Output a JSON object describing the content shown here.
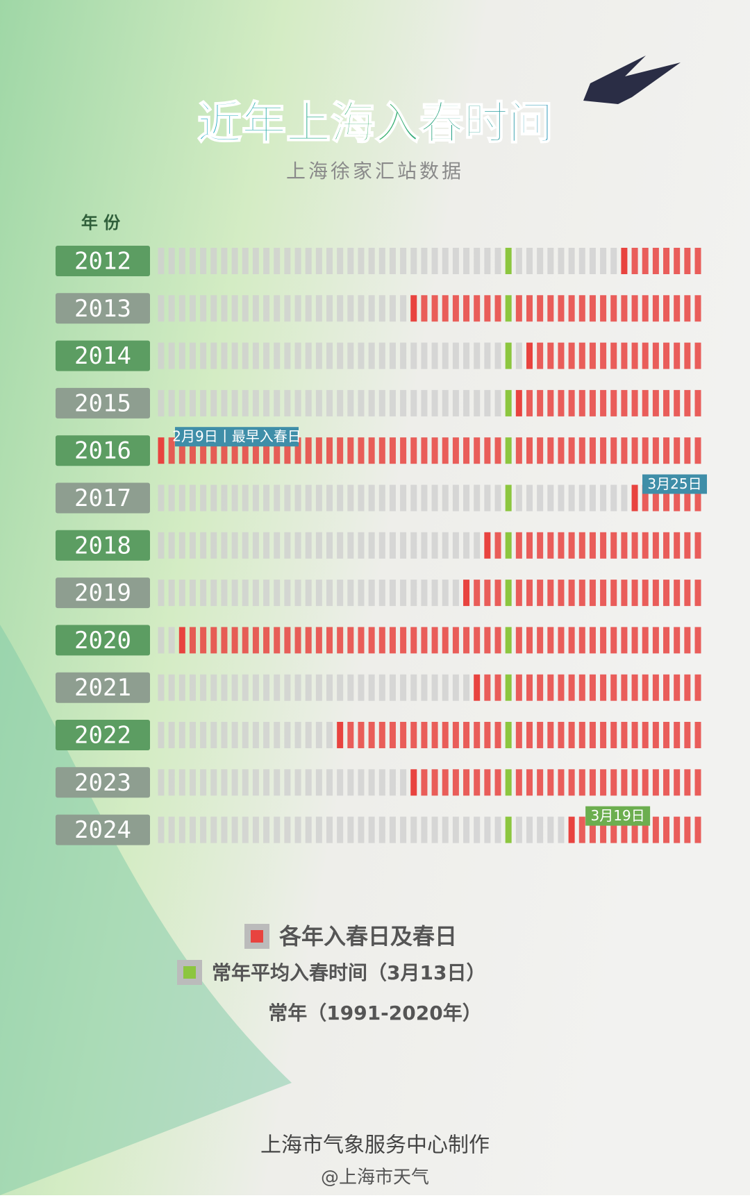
{
  "chart_data": {
    "type": "day-strip",
    "title": "近年上海入春时间",
    "subtitle": "上海徐家汇站数据",
    "y_axis_label": "年 份",
    "categories": [
      "2012",
      "2013",
      "2014",
      "2015",
      "2016",
      "2017",
      "2018",
      "2019",
      "2020",
      "2021",
      "2022",
      "2023",
      "2024"
    ],
    "values": [
      11,
      -9,
      2,
      1,
      -33,
      12,
      -2,
      -4,
      -31,
      -3,
      -16,
      -9,
      6
    ],
    "value_labels": [
      null,
      null,
      null,
      null,
      "2月9日丨最早入春日",
      "3月25日",
      null,
      null,
      null,
      null,
      null,
      null,
      "3月19日"
    ],
    "color": "#e8433f",
    "normal": 0,
    "normal_color": "#8cc63f",
    "xlim": [
      -33,
      18
    ],
    "legend": [
      {
        "label": "各年入春日及春日",
        "color": "#e8433f"
      },
      {
        "label": "常年平均入春时间（3月13日）",
        "color": "#8cc63f"
      }
    ],
    "note": "常年（1991-2020年）",
    "credit": "上海市气象服务中心制作",
    "watermark": "@上海市天气"
  }
}
